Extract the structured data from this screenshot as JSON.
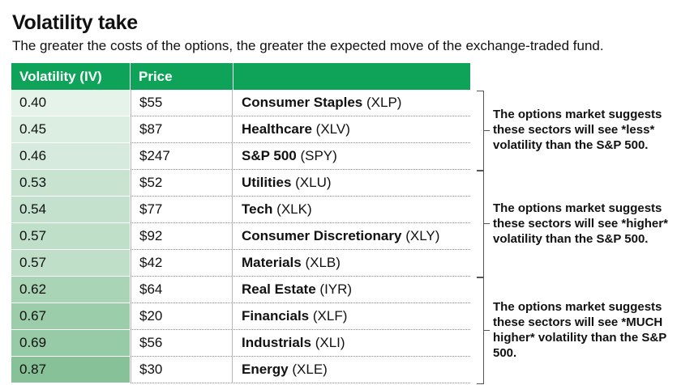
{
  "title": "Volatility take",
  "subtitle": "The greater the costs of the options, the greater the expected move of the exchange-traded fund.",
  "chart_data": {
    "type": "table",
    "columns": [
      "Volatility (IV)",
      "Price",
      ""
    ],
    "rows": [
      {
        "iv": "0.40",
        "price": "$55",
        "name": "Consumer Staples",
        "ticker": "(XLP)",
        "shade": "#e6f3ea"
      },
      {
        "iv": "0.45",
        "price": "$87",
        "name": "Healthcare",
        "ticker": "(XLV)",
        "shade": "#dbeee1"
      },
      {
        "iv": "0.46",
        "price": "$247",
        "name": "S&P 500",
        "ticker": "(SPY)",
        "shade": "#d6ebdd"
      },
      {
        "iv": "0.53",
        "price": "$52",
        "name": "Utilities",
        "ticker": "(XLU)",
        "shade": "#c8e3d0"
      },
      {
        "iv": "0.54",
        "price": "$77",
        "name": "Tech",
        "ticker": "(XLK)",
        "shade": "#c4e1cd"
      },
      {
        "iv": "0.57",
        "price": "$92",
        "name": "Consumer Discretionary",
        "ticker": "(XLY)",
        "shade": "#bfdfc8"
      },
      {
        "iv": "0.57",
        "price": "$42",
        "name": "Materials",
        "ticker": "(XLB)",
        "shade": "#bfdfc8"
      },
      {
        "iv": "0.62",
        "price": "$64",
        "name": "Real Estate",
        "ticker": "(IYR)",
        "shade": "#a9d4b6"
      },
      {
        "iv": "0.67",
        "price": "$20",
        "name": "Financials",
        "ticker": "(XLF)",
        "shade": "#9ccdab"
      },
      {
        "iv": "0.69",
        "price": "$56",
        "name": "Industrials",
        "ticker": "(XLI)",
        "shade": "#97caa6"
      },
      {
        "iv": "0.87",
        "price": "$30",
        "name": "Energy",
        "ticker": "(XLE)",
        "shade": "#87c198"
      }
    ],
    "groups": [
      {
        "rows": [
          0,
          2
        ],
        "note": "The options market suggests these sectors will see *less* volatility than the S&P 500."
      },
      {
        "rows": [
          3,
          6
        ],
        "note": "The options market suggests these sectors will see *higher* volatility than the S&P 500."
      },
      {
        "rows": [
          7,
          10
        ],
        "note": "The options market suggests these sectors will see *MUCH higher* volatility than the S&P 500."
      }
    ],
    "colors": {
      "header": "#0fa35a"
    }
  }
}
